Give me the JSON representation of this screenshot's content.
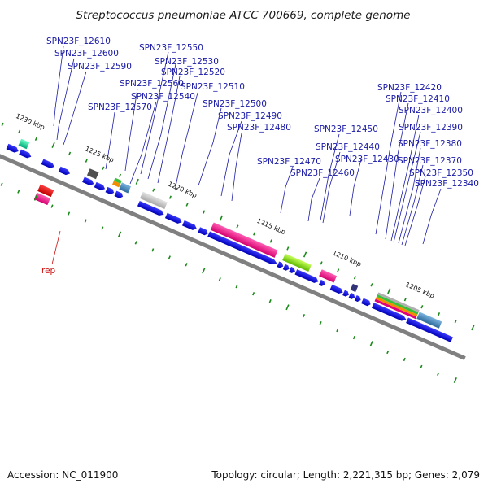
{
  "title": "Streptococcus pneumoniae ATCC 700669, complete genome",
  "accession_text": "Accession: NC_011900",
  "topology_text": "Topology: circular; Length: 2,221,315 bp; Genes: 2,079",
  "ruler_labels": [
    "1230 kbp",
    "1225 kbp",
    "1220 kbp",
    "1215 kbp",
    "1210 kbp",
    "1205 kbp"
  ],
  "gene_labels": [
    "SPN23F_12610",
    "SPN23F_12600",
    "SPN23F_12590",
    "SPN23F_12570",
    "SPN23F_12560",
    "SPN23F_12550",
    "SPN23F_12530",
    "SPN23F_12520",
    "SPN23F_12540",
    "SPN23F_12510",
    "SPN23F_12500",
    "SPN23F_12490",
    "SPN23F_12480",
    "SPN23F_12470",
    "SPN23F_12460",
    "SPN23F_12450",
    "SPN23F_12440",
    "SPN23F_12430",
    "SPN23F_12420",
    "SPN23F_12410",
    "SPN23F_12400",
    "SPN23F_12390",
    "SPN23F_12380",
    "SPN23F_12370",
    "SPN23F_12350",
    "SPN23F_12340"
  ],
  "feature_label": "rep",
  "colors": {
    "gene": "#1010e8",
    "backbone": "#808080",
    "tick": "#1a8a1a",
    "label": "#1a1aa6",
    "rep_label": "#cc1111"
  }
}
